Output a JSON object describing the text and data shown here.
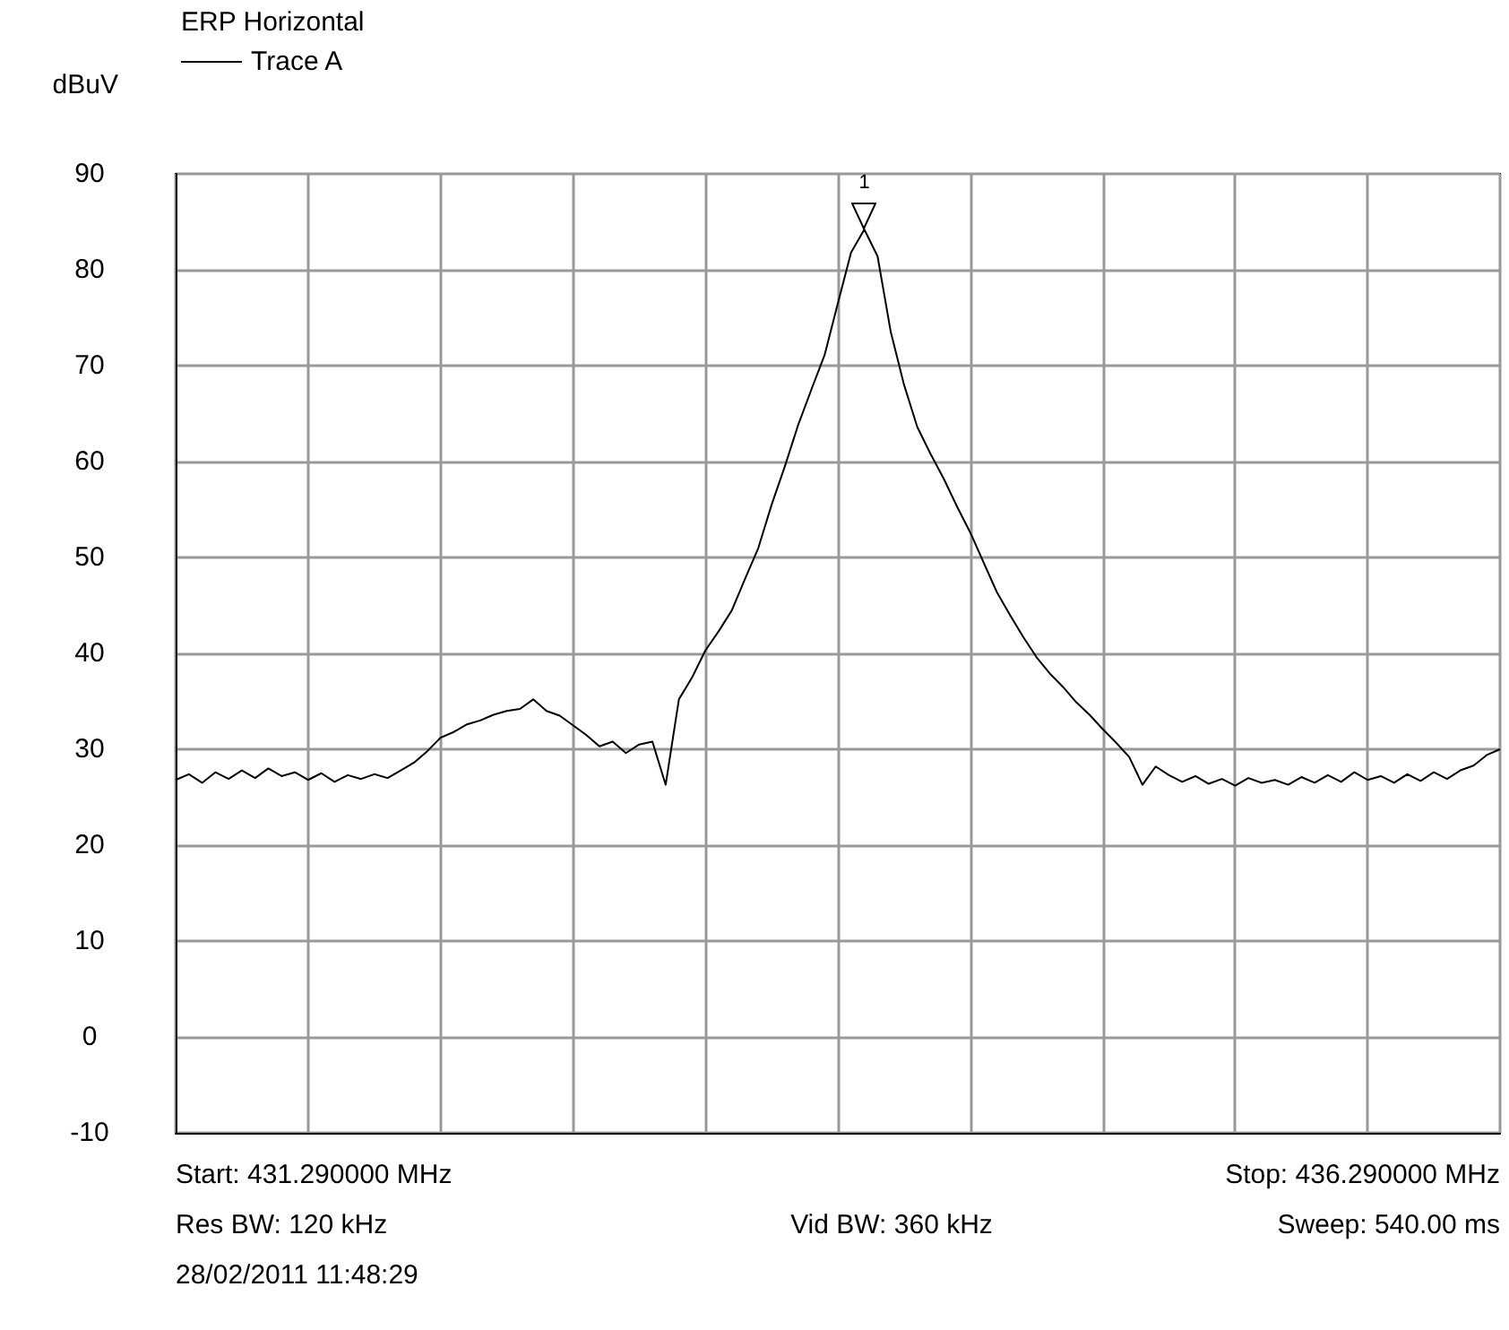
{
  "chart_data": {
    "type": "line",
    "title": "ERP Horizontal",
    "ylabel": "dBuV",
    "legend": "top left",
    "grid": true,
    "line_style": "solid",
    "tick_labels": "y",
    "categories": [
      null,
      null,
      null,
      null,
      null,
      null,
      null,
      null,
      null,
      null,
      null,
      null,
      null,
      null,
      null,
      null,
      null,
      null,
      null,
      null,
      null,
      null,
      null,
      null,
      null,
      null,
      null,
      null,
      null,
      null,
      null,
      null,
      null,
      null,
      null,
      null,
      null,
      null,
      null,
      null,
      null,
      null,
      null,
      null,
      null,
      null,
      null,
      null,
      null,
      null,
      null,
      null,
      null,
      null,
      null,
      null,
      null,
      null,
      null,
      null,
      null,
      null,
      null,
      null,
      null,
      null,
      null,
      null,
      null,
      null,
      null,
      null,
      null,
      null,
      null,
      null,
      null,
      null,
      null,
      null,
      null,
      null,
      null,
      null,
      null,
      null,
      null,
      null,
      null,
      null,
      null,
      null,
      null,
      null,
      null,
      null,
      null,
      null,
      null,
      null,
      null
    ],
    "ylim": [
      -10,
      90
    ],
    "yticks": [
      -10,
      0,
      10,
      20,
      30,
      40,
      50,
      60,
      70,
      80,
      90
    ],
    "series": [
      {
        "name": "Trace A",
        "color": "#000000",
        "values": [
          26.8,
          27.4,
          26.5,
          27.6,
          26.9,
          27.8,
          27.0,
          28.0,
          27.2,
          27.6,
          26.8,
          27.5,
          26.6,
          27.3,
          26.9,
          27.4,
          27.0,
          27.8,
          28.6,
          29.8,
          31.2,
          31.8,
          32.6,
          33.0,
          33.6,
          34.0,
          34.2,
          35.2,
          34.0,
          33.5,
          32.5,
          31.5,
          30.3,
          30.8,
          29.6,
          30.5,
          30.8,
          26.3,
          35.2,
          37.5,
          40.3,
          42.3,
          44.5,
          47.8,
          51.0,
          55.5,
          59.5,
          63.8,
          67.5,
          71.1,
          76.5,
          81.8,
          84.2,
          81.4,
          73.5,
          68.0,
          63.6,
          60.8,
          58.2,
          55.3,
          52.6,
          49.5,
          46.4,
          44.0,
          41.7,
          39.6,
          37.9,
          36.5,
          34.9,
          33.6,
          32.1,
          30.7,
          29.2,
          26.3,
          28.2,
          27.3,
          26.6,
          27.2,
          26.4,
          26.9,
          26.2,
          27.0,
          26.5,
          26.8,
          26.3,
          27.1,
          26.5,
          27.3,
          26.6,
          27.6,
          26.8,
          27.2,
          26.5,
          27.4,
          26.7,
          27.6,
          26.9,
          27.8,
          28.3,
          29.4,
          30.0
        ]
      }
    ],
    "annotations": [
      {
        "text": "1",
        "y": 84.2
      },
      "Start: 431.290000 MHz",
      "Stop: 436.290000 MHz",
      "Res BW: 120 kHz",
      "Vid BW: 360 kHz",
      "Sweep: 540.00 ms",
      "28/02/2011 11:48:29"
    ]
  }
}
